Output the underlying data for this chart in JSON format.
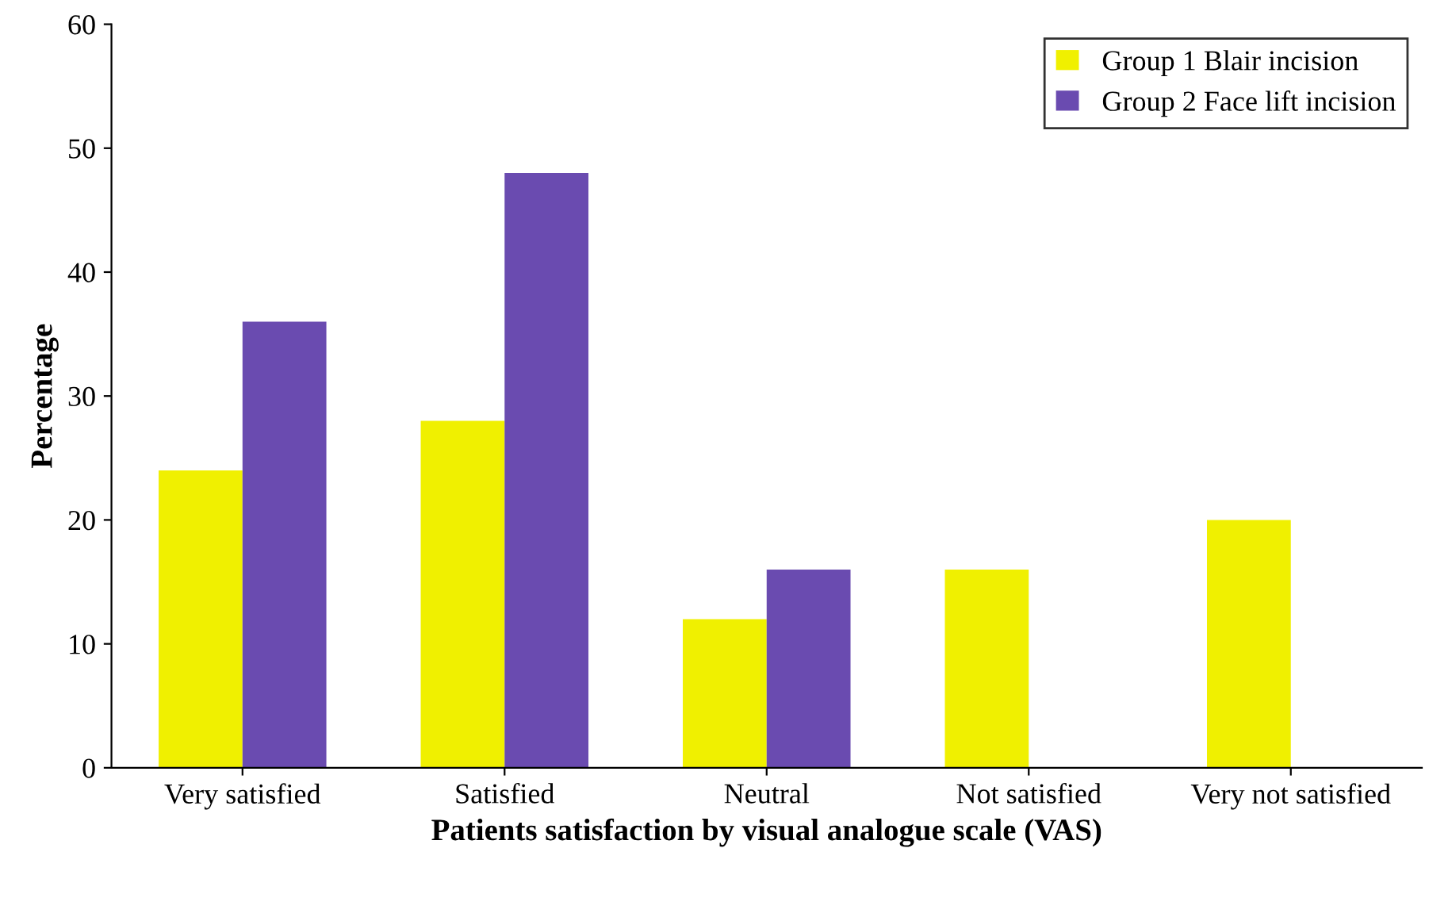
{
  "chart_data": {
    "type": "bar",
    "xlabel": "Patients satisfaction by visual analogue scale (VAS)",
    "ylabel": "Percentage",
    "categories": [
      "Very satisfied",
      "Satisfied",
      "Neutral",
      "Not satisfied",
      "Very not satisfied"
    ],
    "series": [
      {
        "name": "Group 1 Blair incision",
        "color": "#f0f000",
        "values": [
          24,
          28,
          12,
          16,
          20
        ]
      },
      {
        "name": "Group 2 Face lift incision",
        "color": "#6a4bb0",
        "values": [
          36,
          48,
          16,
          null,
          null
        ]
      }
    ],
    "ylim": [
      0,
      60
    ],
    "yticks": [
      0,
      10,
      20,
      30,
      40,
      50,
      60
    ],
    "legend": "top right",
    "grid": false
  }
}
